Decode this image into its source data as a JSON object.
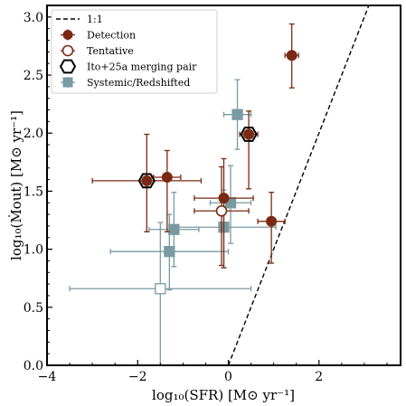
{
  "chart_data": {
    "type": "scatter",
    "xlabel": "log₁₀(SFR) [M⊙ yr⁻¹]",
    "ylabel": "log₁₀(Ṁout) [M⊙ yr⁻¹]",
    "xlim": [
      -4,
      3.8
    ],
    "ylim": [
      0,
      3.1
    ],
    "x_ticks": [
      -4,
      -2,
      0,
      2
    ],
    "x_tick_labels": [
      "−4",
      "−2",
      "0",
      "2"
    ],
    "y_ticks": [
      0.0,
      0.5,
      1.0,
      1.5,
      2.0,
      2.5,
      3.0
    ],
    "y_tick_labels": [
      "0.0",
      "0.5",
      "1.0",
      "1.5",
      "2.0",
      "2.5",
      "3.0"
    ],
    "grid": false,
    "legend_position": "top-left",
    "colors": {
      "detection": "#7a2a14",
      "systemic": "#7a9aa2",
      "pair": "#000000",
      "line": "#000000"
    },
    "reference_line": {
      "name": "1:1",
      "points": [
        [
          0,
          0
        ],
        [
          3.1,
          3.1
        ]
      ]
    },
    "legend": [
      {
        "label": "1:1",
        "marker": "dashed-line"
      },
      {
        "label": "Detection",
        "marker": "filled-circle"
      },
      {
        "label": "Tentative",
        "marker": "open-circle"
      },
      {
        "label": "Ito+25a merging pair",
        "marker": "open-hexagon"
      },
      {
        "label": "Systemic/Redshifted",
        "marker": "filled-square"
      }
    ],
    "series": [
      {
        "name": "Detection",
        "points": [
          {
            "x": 1.4,
            "y": 2.67,
            "xerr": 0.15,
            "yerr": [
              0.28,
              0.27
            ]
          },
          {
            "x": -1.35,
            "y": 1.62,
            "xerr": 0.3,
            "yerr": [
              0.47,
              0.23
            ]
          },
          {
            "x": -1.8,
            "y": 1.59,
            "xerr": 1.2,
            "yerr": [
              0.44,
              0.4
            ]
          },
          {
            "x": -0.1,
            "y": 1.44,
            "xerr": 0.65,
            "yerr": [
              0.6,
              0.34
            ]
          },
          {
            "x": 0.95,
            "y": 1.24,
            "xerr": 0.3,
            "yerr": [
              0.36,
              0.25
            ]
          },
          {
            "x": 0.45,
            "y": 1.99,
            "xerr": 0.2,
            "yerr": [
              0.47,
              0.2
            ]
          }
        ]
      },
      {
        "name": "Tentative",
        "points": [
          {
            "x": -0.15,
            "y": 1.33,
            "xerr": 0.6,
            "yerr": [
              0.47,
              0.38
            ]
          }
        ]
      },
      {
        "name": "Ito+25a merging pair",
        "points": [
          {
            "x": -1.8,
            "y": 1.59
          },
          {
            "x": 0.45,
            "y": 1.99
          }
        ]
      },
      {
        "name": "Systemic/Redshifted",
        "points": [
          {
            "x": 0.2,
            "y": 2.16,
            "xerr": 0.3,
            "yerr": [
              0.3,
              0.3
            ],
            "filled": true
          },
          {
            "x": 0.05,
            "y": 1.4,
            "xerr": 0.45,
            "yerr": [
              0.35,
              0.32
            ],
            "filled": true
          },
          {
            "x": -0.1,
            "y": 1.19,
            "xerr": 1.15,
            "yerr": [
              0.35,
              0.32
            ],
            "filled": true
          },
          {
            "x": -1.2,
            "y": 1.17,
            "xerr": 0.55,
            "yerr": [
              0.32,
              0.32
            ],
            "filled": true
          },
          {
            "x": -1.3,
            "y": 0.98,
            "xerr": 1.3,
            "yerr": [
              0.33,
              0.32
            ],
            "filled": true
          },
          {
            "x": -1.5,
            "y": 0.66,
            "xerr": 2.0,
            "yerr": [
              0.66,
              0.57
            ],
            "filled": false
          }
        ]
      }
    ]
  }
}
